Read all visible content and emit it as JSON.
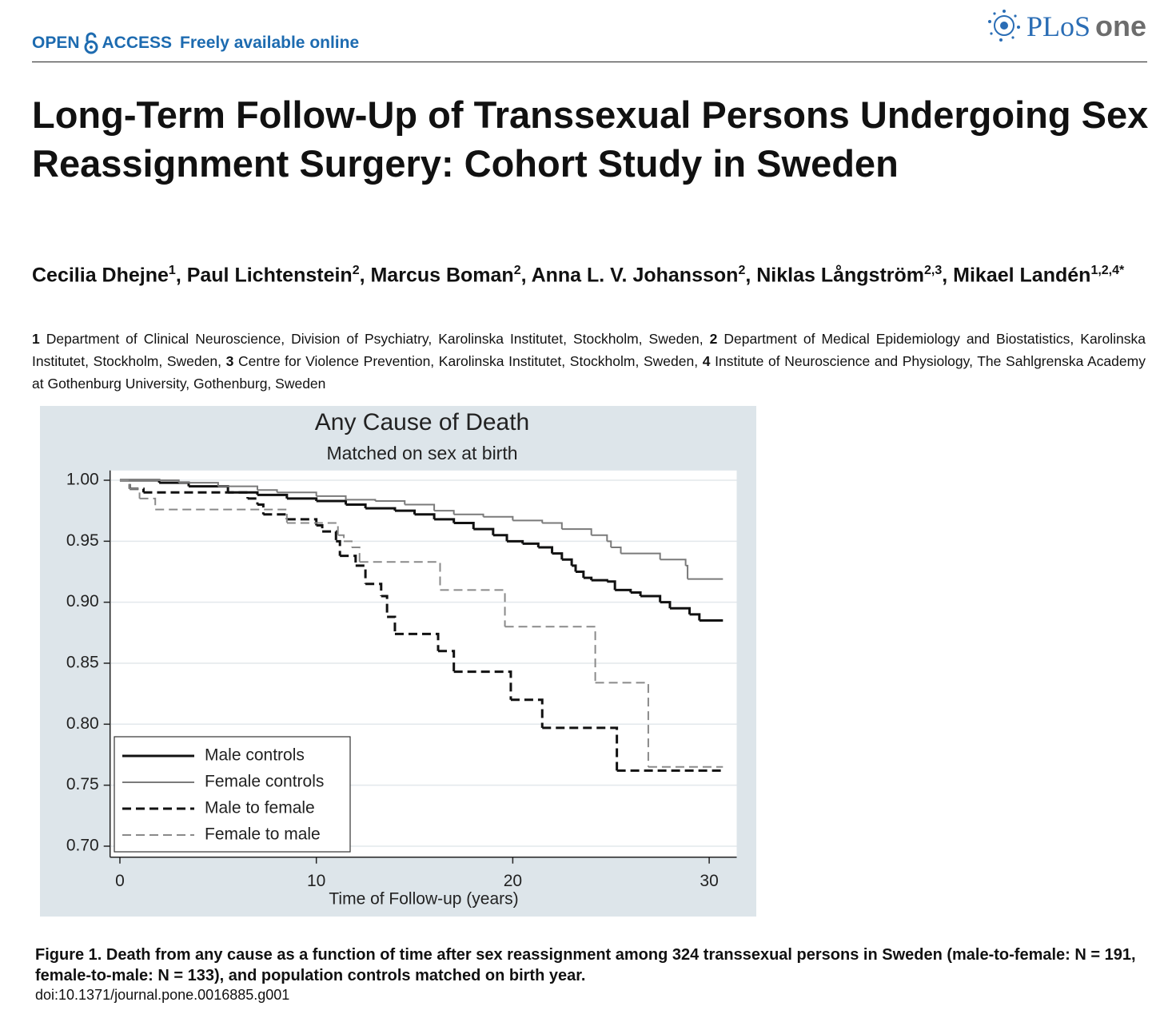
{
  "header": {
    "open": "OPEN",
    "access": "ACCESS",
    "tagline": "Freely available online",
    "logo_plos": "PLoS",
    "logo_one": "one"
  },
  "title": "Long-Term Follow-Up of Transsexual Persons Undergoing Sex Reassignment Surgery: Cohort Study in Sweden",
  "authors": [
    {
      "name": "Cecilia Dhejne",
      "sup": "1"
    },
    {
      "name": ", Paul Lichtenstein",
      "sup": "2"
    },
    {
      "name": ", Marcus Boman",
      "sup": "2"
    },
    {
      "name": ", Anna L. V. Johansson",
      "sup": "2"
    },
    {
      "name": ", Niklas Långström",
      "sup": "2,3"
    },
    {
      "name": ", Mikael Landén",
      "sup": "1,2,4*"
    }
  ],
  "affiliations": [
    {
      "num": "1",
      "text": "Department of Clinical Neuroscience, Division of Psychiatry, Karolinska Institutet, Stockholm, Sweden,"
    },
    {
      "num": "2",
      "text": "Department of Medical Epidemiology and Biostatistics, Karolinska Institutet, Stockholm, Sweden,"
    },
    {
      "num": "3",
      "text": "Centre for Violence Prevention, Karolinska Institutet, Stockholm, Sweden,"
    },
    {
      "num": "4",
      "text": "Institute of Neuroscience and Physiology, The Sahlgrenska Academy at Gothenburg University, Gothenburg, Sweden"
    }
  ],
  "chart_data": {
    "type": "step",
    "title": "Any Cause of Death",
    "subtitle": "Matched on sex at birth",
    "x_label": "Time of Follow-up (years)",
    "xlim": [
      -0.5,
      31.4
    ],
    "ylim": [
      0.691,
      1.008
    ],
    "xticks": [
      0,
      10,
      20,
      30
    ],
    "yticks": [
      {
        "value": 1.0,
        "label": "1.00"
      },
      {
        "value": 0.95,
        "label": "0.95"
      },
      {
        "value": 0.9,
        "label": "0.90"
      },
      {
        "value": 0.85,
        "label": "0.85"
      },
      {
        "value": 0.8,
        "label": "0.80"
      },
      {
        "value": 0.75,
        "label": "0.75"
      },
      {
        "value": 0.7,
        "label": "0.70"
      }
    ],
    "grid": true,
    "legend": "lower left",
    "series": [
      {
        "name": "Male controls",
        "color": "#111111",
        "style": "solid",
        "x": [
          0,
          2,
          3.5,
          5.5,
          7,
          8.5,
          10,
          11.5,
          12.5,
          14,
          15,
          16,
          17,
          18,
          19,
          19.7,
          20.5,
          21.3,
          22,
          22.5,
          23,
          23.2,
          23.6,
          24,
          24.8,
          25.2,
          26,
          26.5,
          27.5,
          28,
          29,
          29.5,
          30.7
        ],
        "values": [
          1.0,
          0.998,
          0.995,
          0.99,
          0.988,
          0.985,
          0.983,
          0.98,
          0.977,
          0.975,
          0.972,
          0.968,
          0.965,
          0.96,
          0.955,
          0.95,
          0.948,
          0.945,
          0.94,
          0.935,
          0.93,
          0.925,
          0.92,
          0.918,
          0.917,
          0.91,
          0.908,
          0.905,
          0.9,
          0.895,
          0.89,
          0.885,
          0.885
        ]
      },
      {
        "name": "Female controls",
        "color": "#7a7a7a",
        "style": "solid",
        "x": [
          0,
          3,
          5,
          7,
          8,
          10,
          11.5,
          13,
          14.5,
          16,
          17,
          18.5,
          20,
          21.5,
          22.5,
          24,
          24.8,
          25,
          25.5,
          27.5,
          28.8,
          28.9,
          30.7
        ],
        "values": [
          1.0,
          0.998,
          0.995,
          0.992,
          0.99,
          0.987,
          0.984,
          0.983,
          0.98,
          0.975,
          0.972,
          0.97,
          0.967,
          0.965,
          0.96,
          0.955,
          0.95,
          0.945,
          0.94,
          0.935,
          0.93,
          0.919,
          0.919
        ]
      },
      {
        "name": "Male to female",
        "color": "#111111",
        "style": "dashed",
        "x": [
          0,
          0.5,
          1.2,
          6.5,
          7,
          7.3,
          8.5,
          10,
          10.3,
          11,
          11.2,
          12,
          12.5,
          13.3,
          13.6,
          14,
          16.2,
          17,
          19.9,
          21.5,
          25.3,
          30.7
        ],
        "values": [
          1.0,
          0.993,
          0.99,
          0.985,
          0.98,
          0.972,
          0.968,
          0.963,
          0.958,
          0.95,
          0.938,
          0.93,
          0.915,
          0.905,
          0.888,
          0.874,
          0.86,
          0.843,
          0.82,
          0.797,
          0.762,
          0.762
        ]
      },
      {
        "name": "Female to male",
        "color": "#8a8a8a",
        "style": "dashed",
        "x": [
          0,
          0.5,
          1,
          1.8,
          8.5,
          11.1,
          11.4,
          11.8,
          12.2,
          16.3,
          19.6,
          24.2,
          26.9,
          30.7
        ],
        "values": [
          1.0,
          0.993,
          0.985,
          0.976,
          0.965,
          0.955,
          0.95,
          0.945,
          0.933,
          0.91,
          0.88,
          0.834,
          0.765,
          0.765
        ]
      }
    ]
  },
  "caption": "Figure 1. Death from any cause as a function of time after sex reassignment among 324 transsexual persons in Sweden (male-to-female: N = 191, female-to-male: N = 133), and population controls matched on birth year.",
  "doi": "doi:10.1371/journal.pone.0016885.g001"
}
